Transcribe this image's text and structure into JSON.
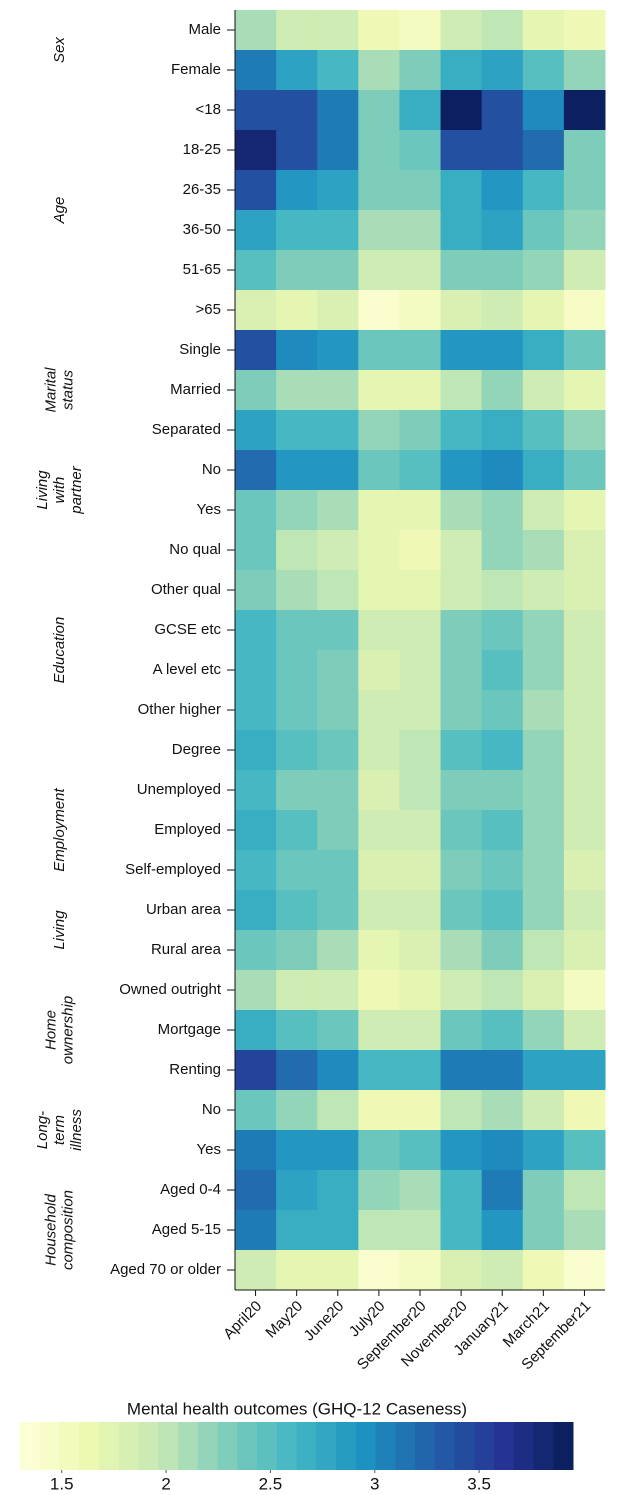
{
  "chart_data": {
    "type": "heatmap",
    "x": [
      "April20",
      "May20",
      "June20",
      "July20",
      "September20",
      "November20",
      "January21",
      "March21",
      "September21"
    ],
    "groups": [
      {
        "label": [
          "Sex"
        ],
        "rows": [
          "Male",
          "Female"
        ],
        "values": [
          [
            2.1,
            1.9,
            1.9,
            1.6,
            1.5,
            1.9,
            2.0,
            1.7,
            1.6
          ],
          [
            3.1,
            2.8,
            2.6,
            2.1,
            2.3,
            2.7,
            2.8,
            2.5,
            2.2
          ]
        ]
      },
      {
        "label": [
          "Age"
        ],
        "rows": [
          "<18",
          "18-25",
          "26-35",
          "36-50",
          "51-65",
          ">65"
        ],
        "values": [
          [
            3.4,
            3.4,
            3.1,
            2.3,
            2.7,
            3.9,
            3.4,
            3.0,
            3.9
          ],
          [
            3.8,
            3.4,
            3.1,
            2.3,
            2.4,
            3.4,
            3.4,
            3.2,
            2.3
          ],
          [
            3.4,
            2.9,
            2.8,
            2.3,
            2.3,
            2.7,
            2.9,
            2.6,
            2.3
          ],
          [
            2.8,
            2.6,
            2.6,
            2.1,
            2.1,
            2.7,
            2.8,
            2.4,
            2.2
          ],
          [
            2.5,
            2.3,
            2.3,
            1.9,
            1.9,
            2.3,
            2.3,
            2.2,
            1.9
          ],
          [
            1.8,
            1.7,
            1.8,
            1.4,
            1.5,
            1.8,
            1.9,
            1.7,
            1.45
          ]
        ]
      },
      {
        "label": [
          "Marital",
          "status"
        ],
        "rows": [
          "Single",
          "Married",
          "Separated"
        ],
        "values": [
          [
            3.4,
            3.0,
            2.9,
            2.4,
            2.4,
            2.9,
            2.9,
            2.7,
            2.4
          ],
          [
            2.3,
            2.1,
            2.1,
            1.7,
            1.7,
            2.0,
            2.2,
            1.9,
            1.7
          ],
          [
            2.8,
            2.6,
            2.6,
            2.2,
            2.3,
            2.6,
            2.7,
            2.5,
            2.2
          ]
        ]
      },
      {
        "label": [
          "Living",
          "with",
          "partner"
        ],
        "rows": [
          "No",
          "Yes"
        ],
        "values": [
          [
            3.2,
            2.9,
            2.9,
            2.4,
            2.5,
            2.9,
            3.0,
            2.7,
            2.4
          ],
          [
            2.4,
            2.2,
            2.1,
            1.7,
            1.7,
            2.1,
            2.2,
            1.9,
            1.7
          ]
        ]
      },
      {
        "label": [
          "Education"
        ],
        "rows": [
          "No qual",
          "Other qual",
          "GCSE etc",
          "A level etc",
          "Other higher",
          "Degree"
        ],
        "values": [
          [
            2.4,
            2.0,
            1.9,
            1.7,
            1.6,
            1.9,
            2.2,
            2.1,
            1.8
          ],
          [
            2.3,
            2.1,
            2.0,
            1.7,
            1.7,
            1.9,
            2.0,
            1.9,
            1.8
          ],
          [
            2.6,
            2.4,
            2.4,
            1.9,
            1.9,
            2.3,
            2.4,
            2.2,
            1.9
          ],
          [
            2.6,
            2.4,
            2.3,
            1.8,
            1.9,
            2.3,
            2.5,
            2.2,
            1.9
          ],
          [
            2.6,
            2.4,
            2.3,
            1.9,
            1.9,
            2.3,
            2.4,
            2.1,
            1.9
          ],
          [
            2.7,
            2.5,
            2.4,
            1.9,
            2.0,
            2.5,
            2.6,
            2.2,
            1.9
          ]
        ]
      },
      {
        "label": [
          "Employment"
        ],
        "rows": [
          "Unemployed",
          "Employed",
          "Self-employed"
        ],
        "values": [
          [
            2.6,
            2.3,
            2.3,
            1.8,
            2.0,
            2.3,
            2.3,
            2.2,
            1.9
          ],
          [
            2.7,
            2.5,
            2.3,
            1.9,
            1.9,
            2.4,
            2.5,
            2.2,
            1.9
          ],
          [
            2.6,
            2.4,
            2.4,
            1.8,
            1.8,
            2.3,
            2.4,
            2.2,
            1.8
          ]
        ]
      },
      {
        "label": [
          "Living"
        ],
        "rows": [
          "Urban area",
          "Rural area"
        ],
        "values": [
          [
            2.7,
            2.5,
            2.4,
            1.9,
            1.9,
            2.4,
            2.5,
            2.2,
            1.9
          ],
          [
            2.4,
            2.3,
            2.1,
            1.7,
            1.8,
            2.1,
            2.3,
            2.0,
            1.8
          ]
        ]
      },
      {
        "label": [
          "Home",
          "ownership"
        ],
        "rows": [
          "Owned outright",
          "Mortgage",
          "Renting"
        ],
        "values": [
          [
            2.1,
            1.9,
            1.9,
            1.6,
            1.7,
            1.9,
            2.0,
            1.8,
            1.5
          ],
          [
            2.7,
            2.5,
            2.4,
            1.9,
            1.9,
            2.4,
            2.5,
            2.2,
            1.9
          ],
          [
            3.5,
            3.2,
            3.0,
            2.6,
            2.6,
            3.1,
            3.1,
            2.8,
            2.8
          ]
        ]
      },
      {
        "label": [
          "Long-",
          "term",
          "illness"
        ],
        "rows": [
          "No",
          "Yes"
        ],
        "values": [
          [
            2.4,
            2.2,
            2.0,
            1.6,
            1.6,
            2.0,
            2.1,
            1.9,
            1.6
          ],
          [
            3.1,
            2.9,
            2.9,
            2.4,
            2.5,
            2.9,
            3.0,
            2.8,
            2.5
          ]
        ]
      },
      {
        "label": [
          "Household",
          "composition"
        ],
        "rows": [
          "Aged 0-4",
          "Aged 5-15",
          "Aged 70 or older"
        ],
        "values": [
          [
            3.2,
            2.8,
            2.7,
            2.2,
            2.1,
            2.6,
            3.1,
            2.3,
            2.0
          ],
          [
            3.1,
            2.7,
            2.7,
            2.0,
            2.0,
            2.6,
            2.9,
            2.3,
            2.1
          ],
          [
            1.9,
            1.7,
            1.7,
            1.4,
            1.5,
            1.8,
            1.9,
            1.6,
            1.4
          ]
        ]
      }
    ],
    "colorbar_title": "Mental health outcomes (GHQ-12 Caseness)",
    "zlim": [
      1.3,
      3.95
    ],
    "zticks": [
      1.5,
      2,
      2.5,
      3,
      3.5
    ],
    "colormap": [
      "#ffffd9",
      "#edf8b1",
      "#c7e9b4",
      "#7fcdbb",
      "#41b6c4",
      "#1d91c0",
      "#225ea8",
      "#253494",
      "#081d58"
    ]
  }
}
